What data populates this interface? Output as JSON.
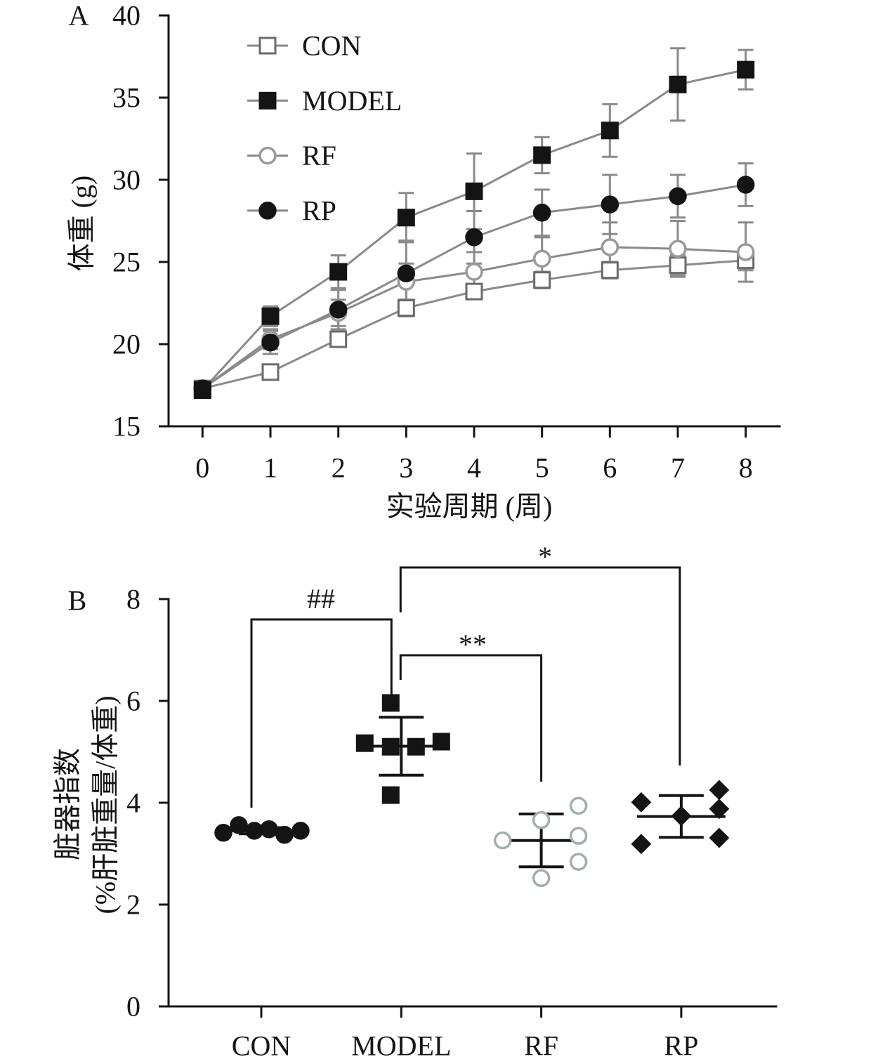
{
  "chart_data": [
    {
      "panel_label": "A",
      "type": "line",
      "xlabel": "实验周期 (周)",
      "ylabel": "体重 (g)",
      "x": [
        0,
        1,
        2,
        3,
        4,
        5,
        6,
        7,
        8
      ],
      "xlim": [
        -0.5,
        8.5
      ],
      "ylim": [
        15,
        40
      ],
      "y_ticks": [
        15,
        20,
        25,
        30,
        35,
        40
      ],
      "grid": false,
      "legend": "top-left",
      "line_color": "#8a8a8a",
      "series": [
        {
          "name": "CON",
          "marker": "open-square",
          "color": "#6a6a6a",
          "values": [
            17.3,
            18.3,
            20.3,
            22.2,
            23.2,
            23.9,
            24.5,
            24.8,
            25.1
          ],
          "errors": [
            0.2,
            0.3,
            0.4,
            0.5,
            0.4,
            0.5,
            0.5,
            0.6,
            0.6
          ]
        },
        {
          "name": "MODEL",
          "marker": "filled-square",
          "color": "#141414",
          "values": [
            17.2,
            21.7,
            24.4,
            27.7,
            29.3,
            31.5,
            33.0,
            35.8,
            36.7
          ],
          "errors": [
            0.2,
            0.6,
            1.0,
            1.5,
            2.3,
            1.1,
            1.6,
            2.2,
            1.2
          ]
        },
        {
          "name": "RF",
          "marker": "open-circle",
          "color": "#9a9a9a",
          "values": [
            17.3,
            20.3,
            21.9,
            23.8,
            24.4,
            25.2,
            25.9,
            25.8,
            25.6
          ],
          "errors": [
            0.2,
            0.6,
            0.8,
            1.1,
            1.2,
            1.3,
            1.5,
            1.7,
            1.8
          ]
        },
        {
          "name": "RP",
          "marker": "filled-circle",
          "color": "#141414",
          "values": [
            17.3,
            20.1,
            22.1,
            24.3,
            26.5,
            28.0,
            28.5,
            29.0,
            29.7
          ],
          "errors": [
            0.2,
            0.7,
            1.2,
            2.0,
            1.6,
            1.4,
            1.8,
            1.3,
            1.3
          ]
        }
      ]
    },
    {
      "panel_label": "B",
      "type": "scatter",
      "ylabel": [
        "脏器指数",
        "(%肝脏重量/体重)"
      ],
      "categories": [
        "CON",
        "MODEL",
        "RF",
        "RP"
      ],
      "ylim": [
        0,
        8
      ],
      "y_ticks": [
        0,
        2,
        4,
        6,
        8
      ],
      "grid": false,
      "markers": [
        "filled-circle",
        "filled-square",
        "open-circle",
        "filled-diamond"
      ],
      "colors": [
        "#141414",
        "#141414",
        "#a3adb1",
        "#141414"
      ],
      "values": [
        [
          3.41,
          3.56,
          3.45,
          3.48,
          3.37,
          3.45
        ],
        [
          5.17,
          5.96,
          5.1,
          4.15,
          5.1,
          5.2
        ],
        [
          3.26,
          3.66,
          2.52,
          3.94,
          3.35,
          2.84
        ],
        [
          4.01,
          3.19,
          3.74,
          4.25,
          3.88,
          3.31
        ]
      ],
      "mean": [
        3.45,
        5.11,
        3.26,
        3.73
      ],
      "sd": [
        0.06,
        0.57,
        0.52,
        0.41
      ],
      "annotations": [
        {
          "label": "##",
          "between": [
            0,
            1
          ]
        },
        {
          "label": "**",
          "between": [
            1,
            2
          ]
        },
        {
          "label": "*",
          "between": [
            1,
            3
          ]
        }
      ]
    }
  ]
}
